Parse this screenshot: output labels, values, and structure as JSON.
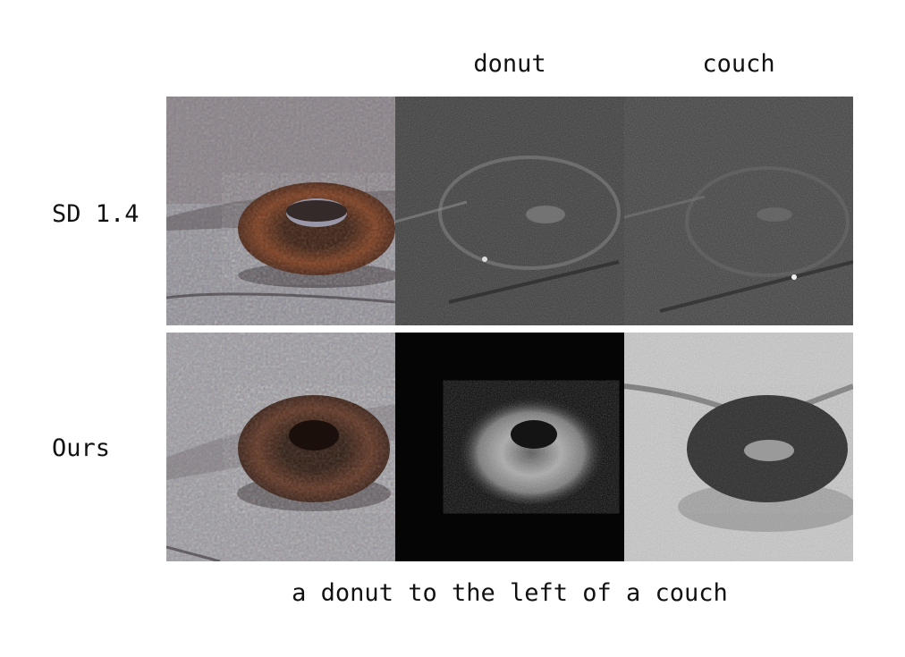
{
  "columns": {
    "col1": "donut",
    "col2": "couch"
  },
  "rows": [
    {
      "label": "SD 1.4"
    },
    {
      "label": "Ours"
    }
  ],
  "caption": "a donut to the left of a couch"
}
